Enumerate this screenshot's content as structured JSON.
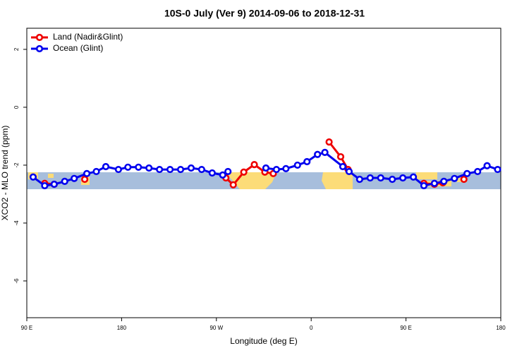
{
  "chart_data": {
    "type": "line",
    "title": "10S-0 July (Ver 9)   2014-09-06 to 2018-12-31",
    "x_label": "Longitude (deg E)",
    "y_label": "XCO2 - MLO trend (ppm)",
    "xlim": [
      90,
      540
    ],
    "xticks": [
      {
        "value": 90,
        "label": "90 E"
      },
      180,
      {
        "value": 270,
        "label": "90 W"
      },
      {
        "value": 360,
        "label": "0"
      },
      {
        "value": 450,
        "label": "90 E"
      },
      {
        "value": 540,
        "label": "180"
      }
    ],
    "ylim": [
      -7.27,
      2.73
    ],
    "yticks": [
      2,
      0,
      -2,
      -4,
      -6
    ],
    "legend": "top-left",
    "series": [
      {
        "name": "Land (Nadir&Glint)",
        "color": "#ee0000",
        "x": [
          107,
          116,
          null,
          145,
          null,
          279,
          286,
          296,
          306,
          316,
          324,
          null,
          377,
          388,
          395,
          null,
          467,
          477,
          485,
          null,
          505
        ],
        "values": [
          -2.63,
          -2.66,
          null,
          -2.49,
          null,
          -2.44,
          -2.68,
          -2.24,
          -1.98,
          -2.24,
          -2.29,
          null,
          -1.2,
          -1.71,
          -2.15,
          null,
          -2.63,
          -2.66,
          -2.61,
          null,
          -2.49
        ]
      },
      {
        "name": "Ocean (Glint)",
        "color": "#0000ee",
        "x": [
          96,
          107,
          116,
          126,
          135,
          147,
          156,
          165,
          177,
          186,
          196,
          206,
          216,
          226,
          236,
          246,
          256,
          266,
          276,
          281,
          null,
          317,
          327,
          336,
          347,
          356,
          366,
          373,
          390,
          396,
          406,
          416,
          426,
          437,
          447,
          457,
          467,
          477,
          486,
          496,
          508,
          518,
          527,
          537
        ],
        "values": [
          -2.41,
          -2.71,
          -2.66,
          -2.56,
          -2.46,
          -2.29,
          -2.22,
          -2.05,
          -2.15,
          -2.07,
          -2.07,
          -2.1,
          -2.15,
          -2.15,
          -2.15,
          -2.1,
          -2.15,
          -2.27,
          -2.34,
          -2.22,
          null,
          -2.1,
          -2.15,
          -2.12,
          -2.0,
          -1.88,
          -1.63,
          -1.56,
          -2.05,
          -2.22,
          -2.49,
          -2.44,
          -2.44,
          -2.49,
          -2.44,
          -2.41,
          -2.71,
          -2.63,
          -2.56,
          -2.46,
          -2.29,
          -2.22,
          -2.02,
          -2.15
        ]
      }
    ]
  }
}
